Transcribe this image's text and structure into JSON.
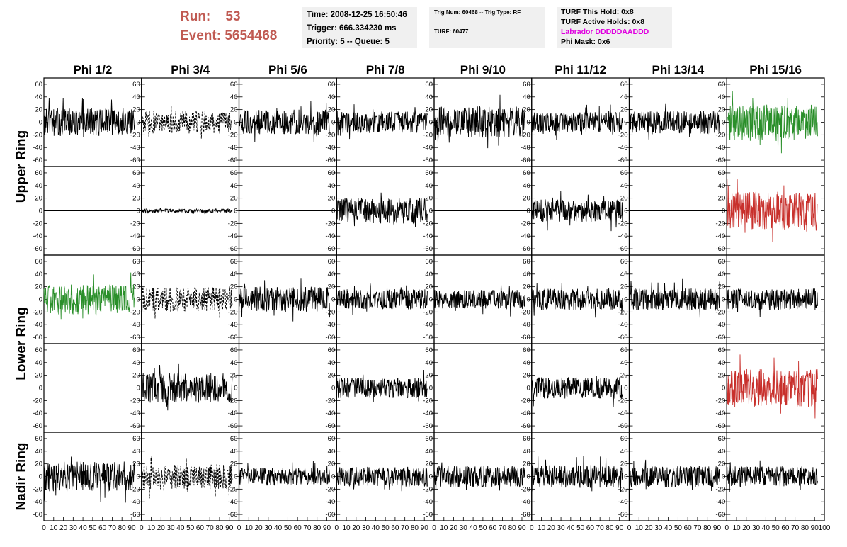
{
  "header": {
    "run_label": "Run:",
    "run_value": "53",
    "event_label": "Event:",
    "event_value": "5654468"
  },
  "info_box_1": {
    "time": "Time: 2008-12-25 16:50:46",
    "trigger": "Trigger: 666.334230 ms",
    "priority": "Priority: 5 -- Queue: 5"
  },
  "info_box_2": {
    "trig": "Trig Num: 60468 -- Trig Type: RF",
    "turf": "TURF: 60477"
  },
  "info_box_3": {
    "this_hold": "TURF This Hold: 0x8",
    "active_holds": "TURF Active Holds: 0x8",
    "labrador": "Labrador DDDDDAADDD",
    "phi_mask": "Phi Mask: 0x6"
  },
  "colors": {
    "trace": "#000000",
    "green": "#2a8f2a",
    "red": "#c8302c",
    "run_event": "#c05a52",
    "labrador": "#e000e0",
    "box_bg": "#f0f0f0"
  },
  "chart_data": {
    "type": "line",
    "column_labels": [
      "Phi 1/2",
      "Phi 3/4",
      "Phi 5/6",
      "Phi 7/8",
      "Phi 9/10",
      "Phi 11/12",
      "Phi 13/14",
      "Phi 15/16"
    ],
    "row_labels": [
      "Upper Ring",
      "Lower Ring",
      "Nadir Ring"
    ],
    "ylim": [
      -70,
      70
    ],
    "yticks": [
      -60,
      -40,
      -20,
      0,
      20,
      40,
      60
    ],
    "xlim": [
      0,
      100
    ],
    "xticks": [
      0,
      10,
      20,
      30,
      40,
      50,
      60,
      70,
      80,
      90,
      100
    ],
    "x_axis_label_run": "0 10 20 30 40 50 60 70 80 90 10",
    "x_axis_label_last": "0 10 20 30 40 50 60 70 80 90 100",
    "panels": [
      {
        "row": 0,
        "col": 0,
        "style": "solid",
        "color": "black",
        "amplitude": 22
      },
      {
        "row": 0,
        "col": 1,
        "style": "dashed",
        "color": "black",
        "amplitude": 18
      },
      {
        "row": 0,
        "col": 2,
        "style": "solid",
        "color": "black",
        "amplitude": 20
      },
      {
        "row": 0,
        "col": 3,
        "style": "solid",
        "color": "black",
        "amplitude": 17
      },
      {
        "row": 0,
        "col": 4,
        "style": "solid",
        "color": "black",
        "amplitude": 25
      },
      {
        "row": 0,
        "col": 5,
        "style": "solid",
        "color": "black",
        "amplitude": 16
      },
      {
        "row": 0,
        "col": 6,
        "style": "solid",
        "color": "black",
        "amplitude": 18
      },
      {
        "row": 0,
        "col": 7,
        "style": "solid",
        "color": "green",
        "amplitude": 28
      },
      {
        "row": 1,
        "col": 0,
        "style": "flat",
        "color": "black",
        "amplitude": 0
      },
      {
        "row": 1,
        "col": 1,
        "style": "solid",
        "color": "black",
        "amplitude": 3
      },
      {
        "row": 1,
        "col": 2,
        "style": "flat",
        "color": "black",
        "amplitude": 0
      },
      {
        "row": 1,
        "col": 3,
        "style": "solid",
        "color": "black",
        "amplitude": 20
      },
      {
        "row": 1,
        "col": 4,
        "style": "flat",
        "color": "black",
        "amplitude": 0
      },
      {
        "row": 1,
        "col": 5,
        "style": "solid",
        "color": "black",
        "amplitude": 18
      },
      {
        "row": 1,
        "col": 6,
        "style": "flat",
        "color": "black",
        "amplitude": 0
      },
      {
        "row": 1,
        "col": 7,
        "style": "solid",
        "color": "red",
        "amplitude": 30
      },
      {
        "row": 2,
        "col": 0,
        "style": "solid",
        "color": "green",
        "amplitude": 24
      },
      {
        "row": 2,
        "col": 1,
        "style": "dashed",
        "color": "black",
        "amplitude": 20
      },
      {
        "row": 2,
        "col": 2,
        "style": "solid",
        "color": "black",
        "amplitude": 20
      },
      {
        "row": 2,
        "col": 3,
        "style": "solid",
        "color": "black",
        "amplitude": 16
      },
      {
        "row": 2,
        "col": 4,
        "style": "solid",
        "color": "black",
        "amplitude": 15
      },
      {
        "row": 2,
        "col": 5,
        "style": "solid",
        "color": "black",
        "amplitude": 17
      },
      {
        "row": 2,
        "col": 6,
        "style": "solid",
        "color": "black",
        "amplitude": 18
      },
      {
        "row": 2,
        "col": 7,
        "style": "solid",
        "color": "black",
        "amplitude": 17
      },
      {
        "row": 3,
        "col": 0,
        "style": "flat",
        "color": "black",
        "amplitude": 0
      },
      {
        "row": 3,
        "col": 1,
        "style": "solid",
        "color": "black",
        "amplitude": 24
      },
      {
        "row": 3,
        "col": 2,
        "style": "flat",
        "color": "black",
        "amplitude": 0
      },
      {
        "row": 3,
        "col": 3,
        "style": "solid",
        "color": "black",
        "amplitude": 16
      },
      {
        "row": 3,
        "col": 4,
        "style": "flat",
        "color": "black",
        "amplitude": 0
      },
      {
        "row": 3,
        "col": 5,
        "style": "solid",
        "color": "black",
        "amplitude": 17
      },
      {
        "row": 3,
        "col": 6,
        "style": "flat",
        "color": "black",
        "amplitude": 0
      },
      {
        "row": 3,
        "col": 7,
        "style": "solid",
        "color": "red",
        "amplitude": 30
      },
      {
        "row": 4,
        "col": 0,
        "style": "solid",
        "color": "black",
        "amplitude": 24
      },
      {
        "row": 4,
        "col": 1,
        "style": "dashed",
        "color": "black",
        "amplitude": 20
      },
      {
        "row": 4,
        "col": 2,
        "style": "solid",
        "color": "black",
        "amplitude": 14
      },
      {
        "row": 4,
        "col": 3,
        "style": "solid",
        "color": "black",
        "amplitude": 16
      },
      {
        "row": 4,
        "col": 4,
        "style": "solid",
        "color": "black",
        "amplitude": 17
      },
      {
        "row": 4,
        "col": 5,
        "style": "solid",
        "color": "black",
        "amplitude": 18
      },
      {
        "row": 4,
        "col": 6,
        "style": "solid",
        "color": "black",
        "amplitude": 17
      },
      {
        "row": 4,
        "col": 7,
        "style": "solid",
        "color": "black",
        "amplitude": 16
      }
    ]
  }
}
